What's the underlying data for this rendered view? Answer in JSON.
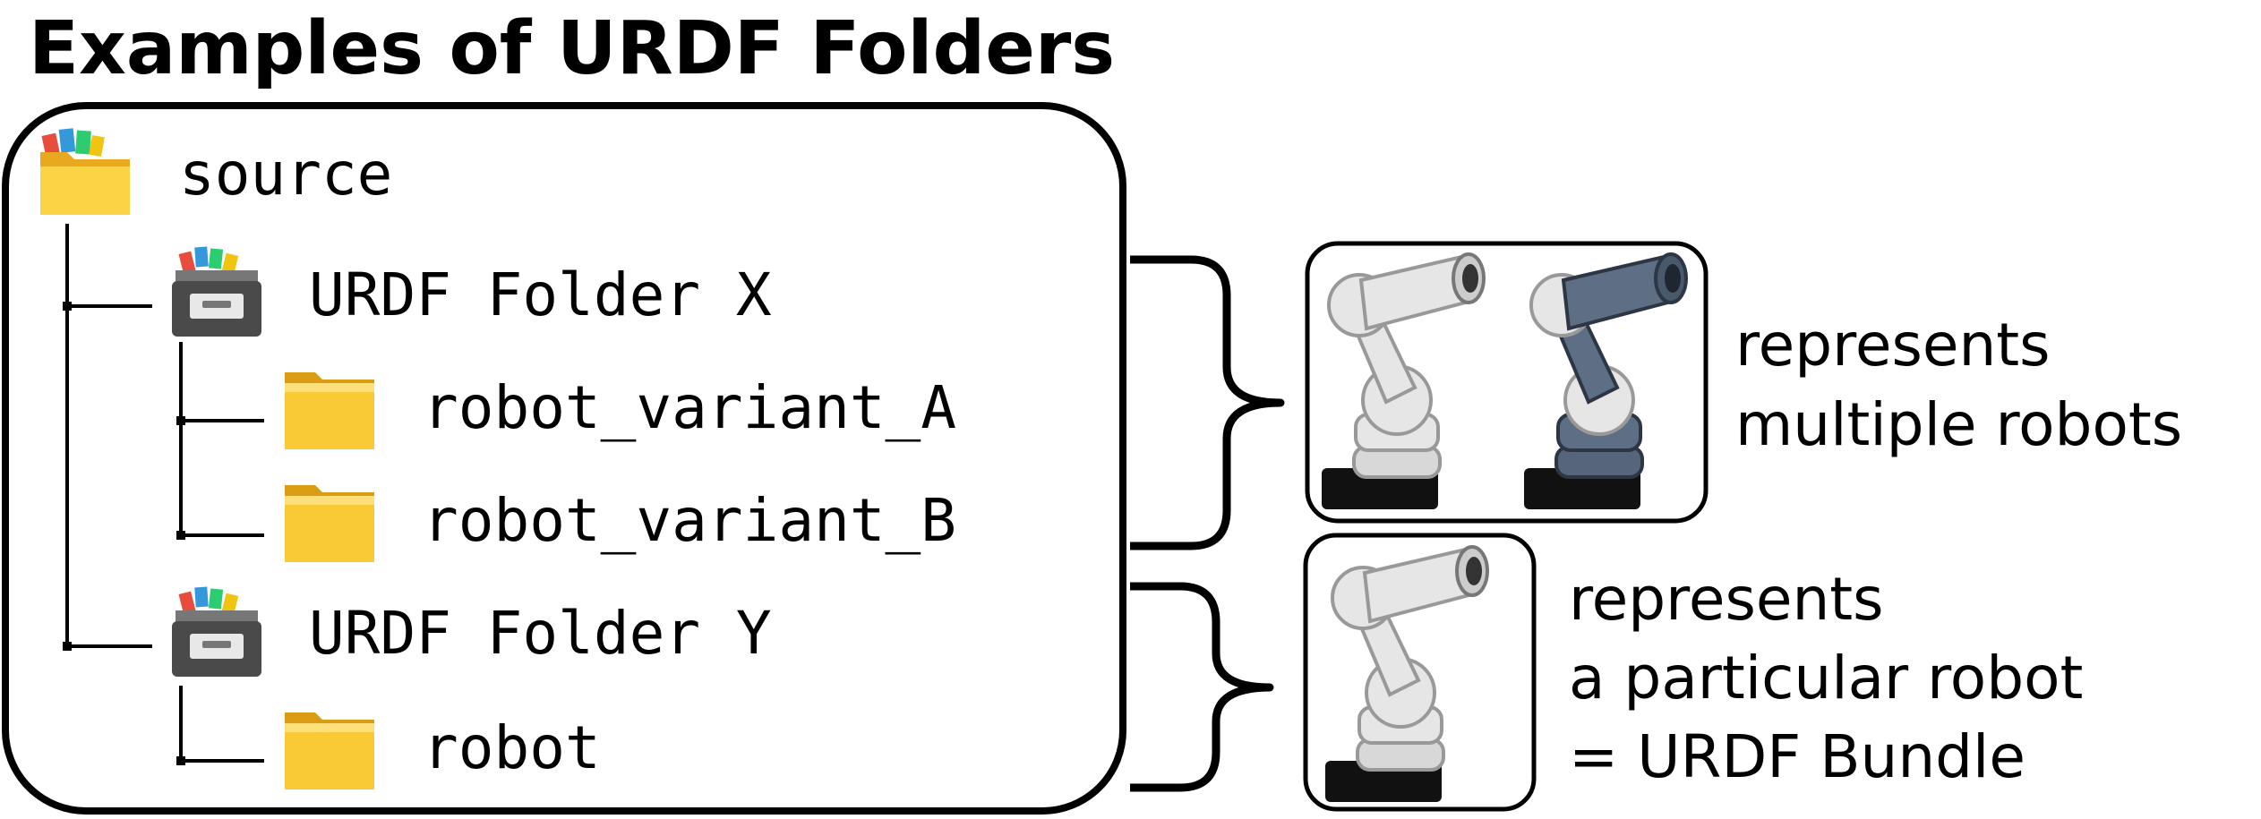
{
  "title": "Examples of URDF Folders",
  "tree": {
    "root": {
      "label": "source",
      "icon": "open-folder-icon"
    },
    "groups": [
      {
        "label": "URDF Folder X",
        "icon": "file-cabinet-icon",
        "children": [
          {
            "label": "robot_variant_A",
            "icon": "folder-icon"
          },
          {
            "label": "robot_variant_B",
            "icon": "folder-icon"
          }
        ]
      },
      {
        "label": "URDF Folder Y",
        "icon": "file-cabinet-icon",
        "children": [
          {
            "label": "robot",
            "icon": "folder-icon"
          }
        ]
      }
    ]
  },
  "annotations": [
    {
      "lines": [
        "represents",
        "multiple robots"
      ],
      "robots": [
        "light-gray robot-arm",
        "dark-blue robot-arm"
      ]
    },
    {
      "lines": [
        "represents",
        "a particular robot",
        "= URDF Bundle"
      ],
      "robots": [
        "light-gray robot-arm"
      ]
    }
  ],
  "colors": {
    "folder": "#f7c531",
    "folder_light": "#ffe07a",
    "cabinet_body": "#555555",
    "robot_light": "#e6e6e6",
    "robot_dark": "#5e6f85",
    "stroke": "#000000"
  }
}
